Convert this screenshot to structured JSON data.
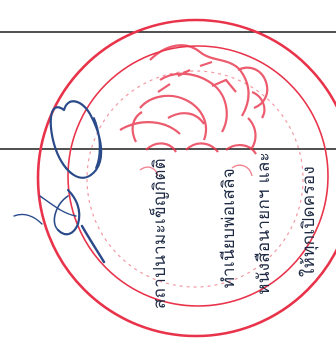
{
  "document": {
    "lines": [
      "ให้ทุกเปิดครอง",
      "หนังสือนายกฯ และ",
      "ทำเนียบพ่อเสลิจ",
      "สถาปนามะเข็ญกิตติ"
    ]
  },
  "colors": {
    "ink": "#1e2a44",
    "seal": "#e8334a",
    "pen": "#2a4a8a",
    "rule": "#1a1a1a"
  }
}
